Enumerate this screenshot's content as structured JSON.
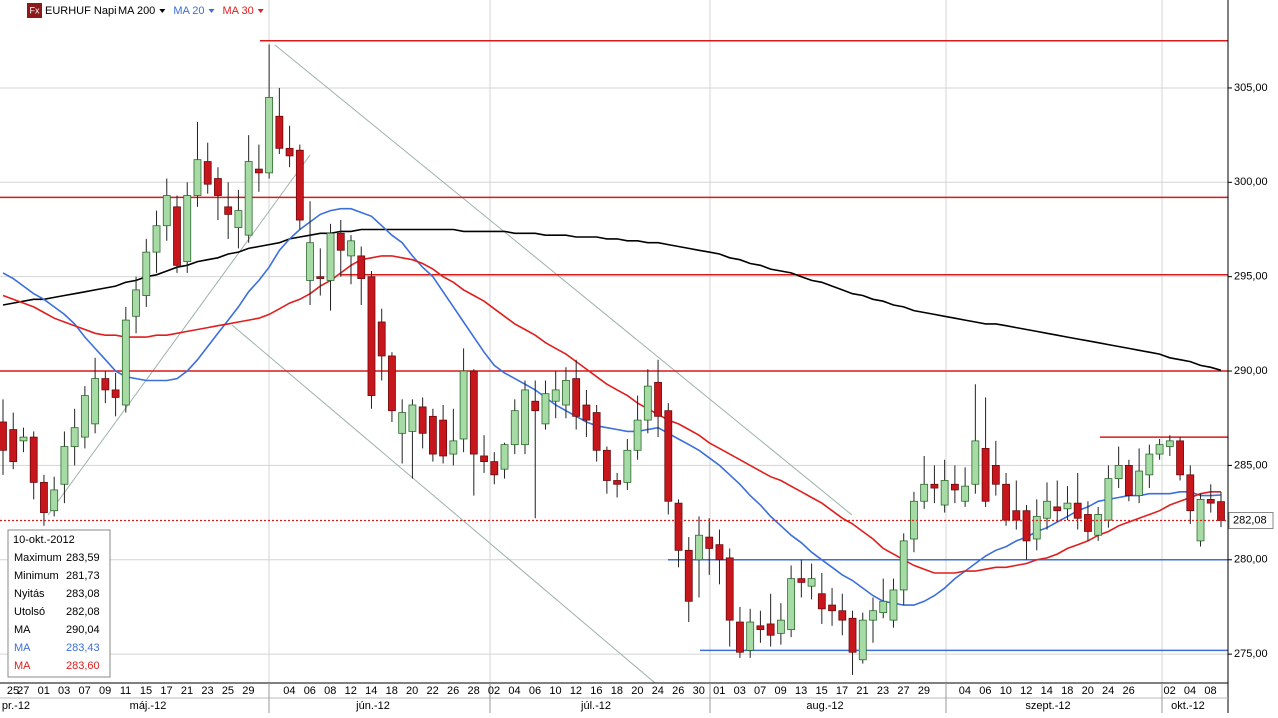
{
  "chart_data": {
    "type": "candlestick",
    "icon_label": "Fx",
    "title": "EURHUF Napi",
    "categories": [
      "25",
      "27",
      null,
      "01",
      null,
      "03",
      null,
      "07",
      null,
      "09",
      null,
      "11",
      null,
      "15",
      null,
      "17",
      null,
      "21",
      null,
      "23",
      null,
      "25",
      null,
      "29",
      null,
      null,
      null,
      "04",
      null,
      "06",
      null,
      "08",
      null,
      "12",
      null,
      "14",
      null,
      "18",
      null,
      "20",
      null,
      "22",
      null,
      "26",
      null,
      "28",
      null,
      "02",
      null,
      "04",
      null,
      "06",
      null,
      "10",
      null,
      "12",
      null,
      "16",
      null,
      "18",
      null,
      "20",
      null,
      "24",
      null,
      "26",
      null,
      "30",
      null,
      "01",
      null,
      "03",
      null,
      "07",
      null,
      "09",
      null,
      "13",
      null,
      "15",
      null,
      "17",
      null,
      "21",
      null,
      "23",
      null,
      "27",
      null,
      "29",
      null,
      null,
      null,
      "04",
      null,
      "06",
      null,
      "10",
      null,
      "12",
      null,
      "14",
      null,
      "18",
      null,
      "20",
      null,
      "24",
      null,
      "26",
      null,
      null,
      null,
      "02",
      null,
      "04",
      null,
      "08",
      null,
      null
    ],
    "months": [
      "pr.-12",
      "máj.-12",
      "jún.-12",
      "júl.-12",
      "aug.-12",
      "szept.-12",
      "okt.-12"
    ],
    "open": [
      287.3,
      286.9,
      286.3,
      286.5,
      284.1,
      282.6,
      284.0,
      286.0,
      286.5,
      287.2,
      289.6,
      289.0,
      288.2,
      292.9,
      294.0,
      296.3,
      297.7,
      298.7,
      295.8,
      299.3,
      301.1,
      300.2,
      298.7,
      297.6,
      297.2,
      300.7,
      300.5,
      303.5,
      301.8,
      301.7,
      294.8,
      295.0,
      294.8,
      297.3,
      296.1,
      296.1,
      295.0,
      292.6,
      290.8,
      286.7,
      286.8,
      288.1,
      287.6,
      287.4,
      285.6,
      286.4,
      290.0,
      285.5,
      285.2,
      284.8,
      286.1,
      286.1,
      288.4,
      287.2,
      288.4,
      288.2,
      289.6,
      288.2,
      287.8,
      285.8,
      284.2,
      284.1,
      285.8,
      287.4,
      289.4,
      287.9,
      283.0,
      280.5,
      280.0,
      281.2,
      280.8,
      280.1,
      276.7,
      275.2,
      276.5,
      276.6,
      276.1,
      276.3,
      279.0,
      278.6,
      278.2,
      277.6,
      277.3,
      276.9,
      274.7,
      276.8,
      277.2,
      276.8,
      278.4,
      281.1,
      283.1,
      284.0,
      282.9,
      284.0,
      283.1,
      284.0,
      285.9,
      285.0,
      284.0,
      282.6,
      282.6,
      281.1,
      282.2,
      282.8,
      282.7,
      283.0,
      282.4,
      281.3,
      282.1,
      284.3,
      285.0,
      283.4,
      284.5,
      285.6,
      286.0,
      286.3,
      284.5,
      281.0,
      283.2,
      283.08
    ],
    "high": [
      288.5,
      287.8,
      287.0,
      286.8,
      284.5,
      284.4,
      286.8,
      288.0,
      289.2,
      290.7,
      290.0,
      289.9,
      293.4,
      295.0,
      297.0,
      298.5,
      300.2,
      299.3,
      300.0,
      303.2,
      302.1,
      300.8,
      300.0,
      299.6,
      302.5,
      302.0,
      307.3,
      305.0,
      303.0,
      302.0,
      299.0,
      296.5,
      297.8,
      298.0,
      297.2,
      296.6,
      295.3,
      293.3,
      291.0,
      288.5,
      288.5,
      288.6,
      288.0,
      288.2,
      288.0,
      291.2,
      290.1,
      286.6,
      285.7,
      286.2,
      288.5,
      289.5,
      289.5,
      289.5,
      290.0,
      290.2,
      290.6,
      289.0,
      288.2,
      286.0,
      284.6,
      286.4,
      288.7,
      290.1,
      290.6,
      288.3,
      283.2,
      281.2,
      282.3,
      282.2,
      281.6,
      280.6,
      277.5,
      277.4,
      277.3,
      278.2,
      277.7,
      279.7,
      280.0,
      279.8,
      279.3,
      278.5,
      278.2,
      277.3,
      277.2,
      278.0,
      279.0,
      279.0,
      281.4,
      283.6,
      285.5,
      285.0,
      285.3,
      285.0,
      284.9,
      289.3,
      288.6,
      286.3,
      284.6,
      284.2,
      282.9,
      283.2,
      284.1,
      284.2,
      283.9,
      284.6,
      283.1,
      282.8,
      285.0,
      286.0,
      285.3,
      285.9,
      286.1,
      286.4,
      286.6,
      286.5,
      285.0,
      283.5,
      284.0,
      283.59
    ],
    "low": [
      284.5,
      284.8,
      285.7,
      283.2,
      281.8,
      282.3,
      283.0,
      285.0,
      285.9,
      286.7,
      288.3,
      287.6,
      287.8,
      292.0,
      293.4,
      295.2,
      296.9,
      295.2,
      295.2,
      298.7,
      299.4,
      298.0,
      297.0,
      296.5,
      296.8,
      299.5,
      300.2,
      301.5,
      300.8,
      297.5,
      293.5,
      294.0,
      293.2,
      295.0,
      294.6,
      293.5,
      288.0,
      289.5,
      287.3,
      285.1,
      284.3,
      285.9,
      285.2,
      285.1,
      285.0,
      285.7,
      283.4,
      284.6,
      284.0,
      284.3,
      285.6,
      285.6,
      282.2,
      286.9,
      287.5,
      287.5,
      286.9,
      286.5,
      285.2,
      283.5,
      283.3,
      283.7,
      285.3,
      286.7,
      286.5,
      282.4,
      279.6,
      276.7,
      278.0,
      279.2,
      278.7,
      275.4,
      274.8,
      274.8,
      275.6,
      275.4,
      275.5,
      275.9,
      278.0,
      277.9,
      276.6,
      276.5,
      276.0,
      273.9,
      274.5,
      275.6,
      276.9,
      276.4,
      277.6,
      280.4,
      282.7,
      283.0,
      282.5,
      283.0,
      282.8,
      283.5,
      282.8,
      283.4,
      281.8,
      281.6,
      280.0,
      280.5,
      281.6,
      282.0,
      282.1,
      281.6,
      281.0,
      281.0,
      281.7,
      283.8,
      283.1,
      283.0,
      283.8,
      285.3,
      285.5,
      284.2,
      281.9,
      280.7,
      282.5,
      281.73
    ],
    "close": [
      285.8,
      285.2,
      286.5,
      284.1,
      282.5,
      283.7,
      286.0,
      287.0,
      288.7,
      289.6,
      289.0,
      288.6,
      292.7,
      294.3,
      296.3,
      297.7,
      299.3,
      295.6,
      299.3,
      301.2,
      299.9,
      299.3,
      298.3,
      298.5,
      301.1,
      300.5,
      304.5,
      301.8,
      301.4,
      298.0,
      296.8,
      294.9,
      297.3,
      296.4,
      296.9,
      294.9,
      288.7,
      290.8,
      287.9,
      287.8,
      288.2,
      286.7,
      285.6,
      285.5,
      286.3,
      290.0,
      285.6,
      285.2,
      284.5,
      286.1,
      287.9,
      289.0,
      287.9,
      288.8,
      289.0,
      289.5,
      287.6,
      287.4,
      285.8,
      284.2,
      284.0,
      285.8,
      287.4,
      289.2,
      287.6,
      283.1,
      280.5,
      277.8,
      281.3,
      280.6,
      280.0,
      276.8,
      275.1,
      276.7,
      276.3,
      276.0,
      276.8,
      279.0,
      278.8,
      279.0,
      277.4,
      277.3,
      276.8,
      275.1,
      276.8,
      277.3,
      277.8,
      278.4,
      281.0,
      283.1,
      284.0,
      283.8,
      284.2,
      283.7,
      283.9,
      286.3,
      283.1,
      284.0,
      282.1,
      282.1,
      281.0,
      282.3,
      283.1,
      282.6,
      283.0,
      282.2,
      281.5,
      282.4,
      284.3,
      285.0,
      283.4,
      284.7,
      285.6,
      286.1,
      286.3,
      284.5,
      282.6,
      283.2,
      283.0,
      282.08
    ],
    "up_color": "#a6dba6",
    "down_color": "#c8161d",
    "series": [
      {
        "name": "MA 200",
        "color": "#000000",
        "values": [
          293.5,
          293.6,
          293.7,
          293.8,
          293.8,
          293.9,
          294.0,
          294.1,
          294.2,
          294.3,
          294.4,
          294.5,
          294.7,
          294.8,
          295.0,
          295.1,
          295.3,
          295.5,
          295.6,
          295.8,
          295.9,
          296.0,
          296.2,
          296.3,
          296.5,
          296.6,
          296.7,
          296.8,
          297.0,
          297.1,
          297.2,
          297.3,
          297.3,
          297.4,
          297.4,
          297.5,
          297.5,
          297.5,
          297.5,
          297.5,
          297.5,
          297.5,
          297.5,
          297.5,
          297.5,
          297.4,
          297.4,
          297.4,
          297.4,
          297.4,
          297.3,
          297.3,
          297.3,
          297.2,
          297.2,
          297.2,
          297.1,
          297.1,
          297.1,
          297.0,
          297.0,
          296.9,
          296.9,
          296.8,
          296.8,
          296.7,
          296.6,
          296.5,
          296.4,
          296.3,
          296.2,
          296.0,
          295.9,
          295.7,
          295.6,
          295.4,
          295.3,
          295.2,
          295.0,
          294.8,
          294.7,
          294.5,
          294.3,
          294.1,
          294.0,
          293.8,
          293.7,
          293.5,
          293.4,
          293.2,
          293.1,
          293.0,
          292.9,
          292.8,
          292.7,
          292.6,
          292.5,
          292.5,
          292.4,
          292.3,
          292.2,
          292.1,
          292.0,
          291.9,
          291.8,
          291.7,
          291.6,
          291.5,
          291.4,
          291.3,
          291.2,
          291.1,
          291.0,
          290.9,
          290.7,
          290.6,
          290.5,
          290.3,
          290.2,
          290.04
        ]
      },
      {
        "name": "MA 20",
        "color": "#3b6fdc",
        "values": [
          295.2,
          294.9,
          294.5,
          294.1,
          293.8,
          293.4,
          293.0,
          292.5,
          291.8,
          291.2,
          290.6,
          290.0,
          289.7,
          289.6,
          289.5,
          289.5,
          289.5,
          289.6,
          290.0,
          290.6,
          291.3,
          292.0,
          292.7,
          293.4,
          294.2,
          294.8,
          295.5,
          296.4,
          297.0,
          297.5,
          297.9,
          298.3,
          298.5,
          298.6,
          298.6,
          298.4,
          298.2,
          297.7,
          297.2,
          296.8,
          296.1,
          295.5,
          295.0,
          294.2,
          293.4,
          292.6,
          291.8,
          291.0,
          290.3,
          289.9,
          289.6,
          289.3,
          289.0,
          288.6,
          288.2,
          287.9,
          287.6,
          287.3,
          287.1,
          287.0,
          286.9,
          286.8,
          286.8,
          286.9,
          287.0,
          286.7,
          286.4,
          286.1,
          285.8,
          285.4,
          285.0,
          284.5,
          284.0,
          283.4,
          282.9,
          282.3,
          281.8,
          281.3,
          280.9,
          280.4,
          280.0,
          279.6,
          279.2,
          278.9,
          278.5,
          278.1,
          277.8,
          277.7,
          277.6,
          277.6,
          277.8,
          278.1,
          278.5,
          279.0,
          279.4,
          279.8,
          280.2,
          280.5,
          280.7,
          281.0,
          281.2,
          281.5,
          281.7,
          282.0,
          282.3,
          282.6,
          282.8,
          283.1,
          283.2,
          283.3,
          283.4,
          283.4,
          283.5,
          283.5,
          283.5,
          283.6,
          283.6,
          283.4,
          283.4,
          283.43
        ]
      },
      {
        "name": "MA 30",
        "color": "#e01e1e",
        "values": [
          294.0,
          293.8,
          293.6,
          293.4,
          293.1,
          292.8,
          292.6,
          292.4,
          292.2,
          292.0,
          291.9,
          291.9,
          291.8,
          291.8,
          291.8,
          291.9,
          291.9,
          292.0,
          292.1,
          292.2,
          292.3,
          292.4,
          292.5,
          292.6,
          292.7,
          292.8,
          293.0,
          293.3,
          293.6,
          293.8,
          294.1,
          294.5,
          294.8,
          295.2,
          295.6,
          295.9,
          296.0,
          296.1,
          296.1,
          296.0,
          295.9,
          295.7,
          295.4,
          295.0,
          294.7,
          294.3,
          294.0,
          293.7,
          293.3,
          292.9,
          292.5,
          292.2,
          291.9,
          291.5,
          291.2,
          290.9,
          290.5,
          290.1,
          289.7,
          289.3,
          289.0,
          288.7,
          288.3,
          288.0,
          287.7,
          287.4,
          287.2,
          286.9,
          286.6,
          286.2,
          285.9,
          285.6,
          285.3,
          285.0,
          284.7,
          284.4,
          284.2,
          283.9,
          283.6,
          283.3,
          283.0,
          282.6,
          282.2,
          281.9,
          281.5,
          281.1,
          280.6,
          280.3,
          280.0,
          279.7,
          279.5,
          279.3,
          279.3,
          279.3,
          279.4,
          279.4,
          279.5,
          279.6,
          279.6,
          279.7,
          279.8,
          280.0,
          280.1,
          280.3,
          280.6,
          280.8,
          281.0,
          281.3,
          281.5,
          281.8,
          282.0,
          282.2,
          282.4,
          282.6,
          282.9,
          283.1,
          283.3,
          283.5,
          283.6,
          283.6
        ]
      }
    ],
    "levels": [
      {
        "value": 307.5,
        "color": "#d71a1a"
      },
      {
        "value": 299.2,
        "color": "#d71a1a"
      },
      {
        "value": 295.1,
        "color": "#d71a1a"
      },
      {
        "value": 290.0,
        "color": "#d71a1a"
      },
      {
        "value": 286.5,
        "color": "#d71a1a"
      },
      {
        "value": 280.0,
        "color": "#3b6fdc"
      },
      {
        "value": 275.2,
        "color": "#3b6fdc"
      }
    ],
    "last_label": "282,08",
    "ylim": [
      273.47,
      309.66
    ],
    "yticks": [
      {
        "value": 275,
        "label": "275,00"
      },
      {
        "value": 280,
        "label": "280,00"
      },
      {
        "value": 285,
        "label": "285,00"
      },
      {
        "value": 290,
        "label": "290,00"
      },
      {
        "value": 295,
        "label": "295,00"
      },
      {
        "value": 300,
        "label": "300,00"
      },
      {
        "value": 305,
        "label": "305,00"
      }
    ],
    "grid": true,
    "info": {
      "date": "10-okt.-2012",
      "rows": [
        [
          "Maximum",
          "283,59"
        ],
        [
          "Minimum",
          "281,73"
        ],
        [
          "Nyitás",
          "283,08"
        ],
        [
          "Utolsó",
          "282,08"
        ],
        [
          "MA",
          "290,04"
        ],
        [
          "MA",
          "283,43"
        ],
        [
          "MA",
          "283,60"
        ]
      ]
    }
  }
}
